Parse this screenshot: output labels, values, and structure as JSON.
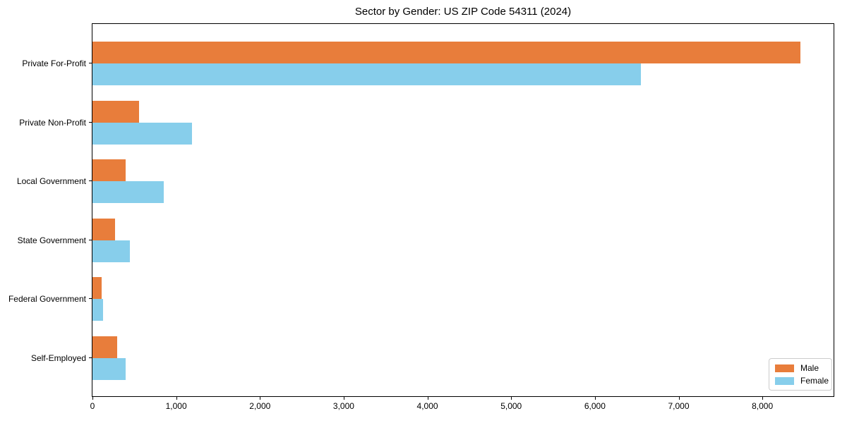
{
  "title": "Sector by Gender: US ZIP Code 54311 (2024)",
  "chart_data": {
    "type": "bar",
    "orientation": "horizontal",
    "title": "Sector by Gender: US ZIP Code 54311 (2024)",
    "categories": [
      "Private For-Profit",
      "Private Non-Profit",
      "Local Government",
      "State Government",
      "Federal Government",
      "Self-Employed"
    ],
    "series": [
      {
        "name": "Male",
        "color": "#e87d3b",
        "values": [
          8450,
          560,
          400,
          270,
          110,
          295
        ]
      },
      {
        "name": "Female",
        "color": "#87ceeb",
        "values": [
          6550,
          1190,
          850,
          450,
          130,
          400
        ]
      }
    ],
    "xlabel": "",
    "ylabel": "",
    "xlim": [
      0,
      8850
    ],
    "xticks": [
      0,
      1000,
      2000,
      3000,
      4000,
      5000,
      6000,
      7000,
      8000
    ],
    "xtick_labels": [
      "0",
      "1,000",
      "2,000",
      "3,000",
      "4,000",
      "5,000",
      "6,000",
      "7,000",
      "8,000"
    ],
    "grid": false,
    "legend_position": "lower right",
    "frame_color": "#000000",
    "background_color": "#ffffff"
  },
  "legend": {
    "items": [
      {
        "label": "Male",
        "color": "#e87d3b"
      },
      {
        "label": "Female",
        "color": "#87ceeb"
      }
    ]
  }
}
